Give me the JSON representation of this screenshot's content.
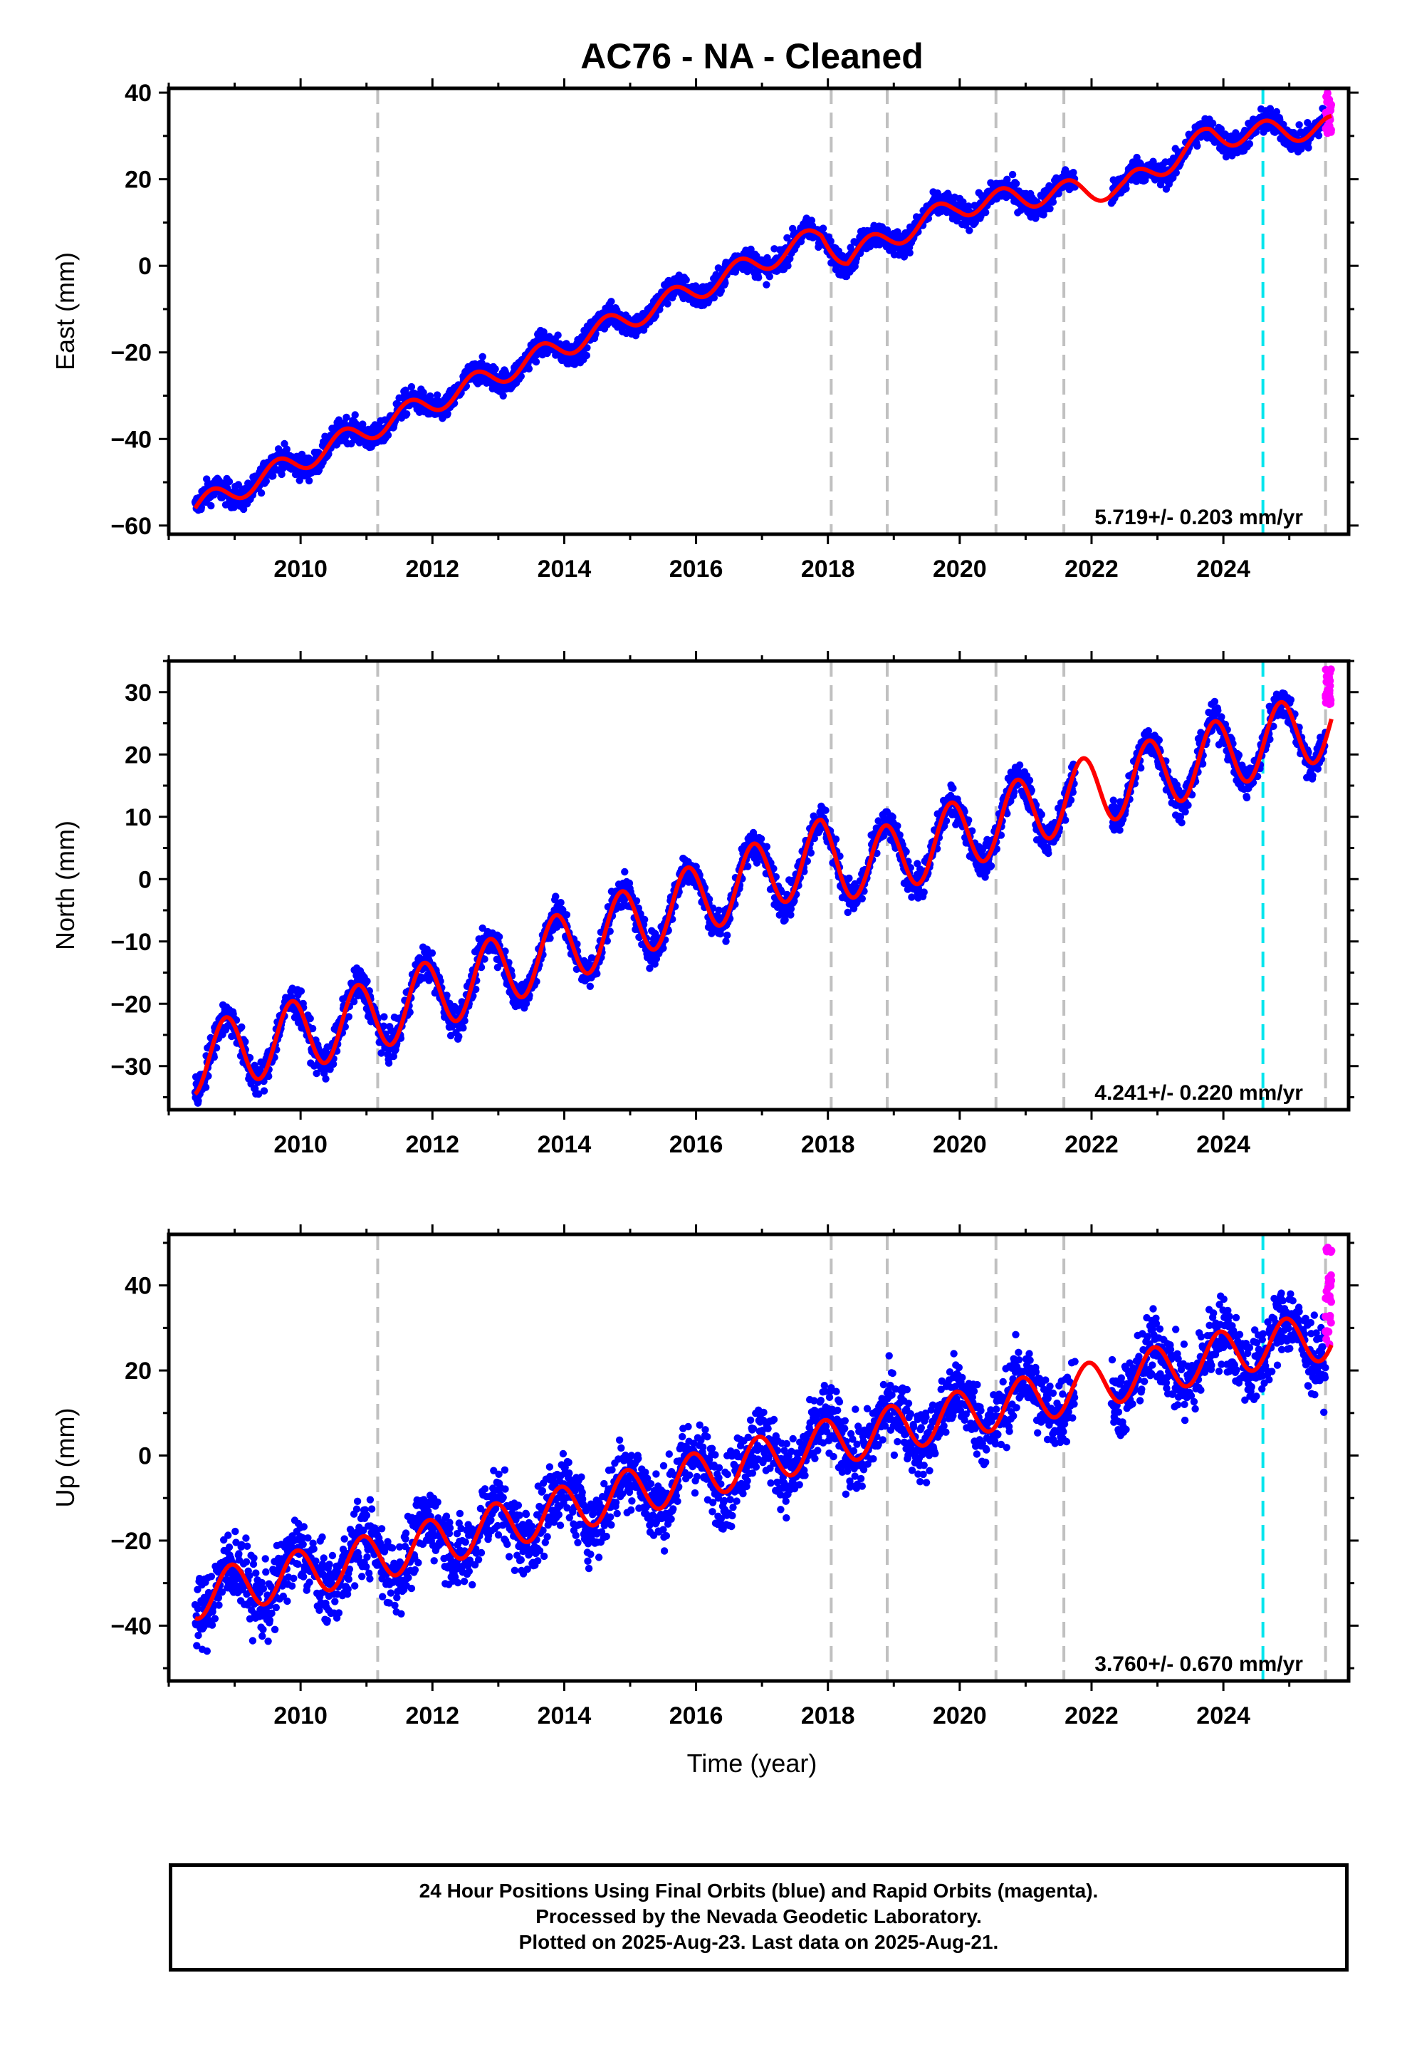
{
  "figure": {
    "title": "AC76  - NA - Cleaned",
    "xlabel": "Time (year)",
    "footer": [
      "24 Hour Positions Using Final Orbits (blue) and Rapid Orbits (magenta).",
      "Processed by the Nevada Geodetic Laboratory.",
      "Plotted on 2025-Aug-23. Last data on 2025-Aug-21."
    ],
    "colors": {
      "final_orbits": "#0000ff",
      "rapid_orbits": "#ff00ff",
      "model_fit": "#ff0000",
      "equipment_change": "#c0c0c0",
      "earthquake": "#00e5ee"
    }
  },
  "chart_data": [
    {
      "type": "scatter",
      "component": "East",
      "ylabel": "East (mm)",
      "xlim": [
        2008.0,
        2025.9
      ],
      "ylim": [
        -62,
        41
      ],
      "xticks": [
        "2010",
        "2012",
        "2014",
        "2016",
        "2018",
        "2020",
        "2022",
        "2024"
      ],
      "yticks": [
        "-60",
        "-40",
        "-20",
        "0",
        "20",
        "40"
      ],
      "rate_label": "5.719+/- 0.203 mm/yr",
      "rate_mm_per_yr": 5.719,
      "rate_sigma": 0.203,
      "offset_lines_gray": [
        2011.17,
        2018.05,
        2018.9,
        2020.55,
        2021.58,
        2025.55
      ],
      "offset_lines_cyan": [
        2024.6
      ],
      "final_orbits_start": 2008.4,
      "final_orbits_end": 2025.55,
      "data_gap": [
        2021.75,
        2022.3
      ],
      "rapid_orbits_start": 2025.55,
      "rapid_orbits_end": 2025.64,
      "model": {
        "anchors": [
          [
            2008.4,
            -56
          ],
          [
            2011.0,
            -38
          ],
          [
            2017.9,
            7
          ],
          [
            2018.3,
            2
          ],
          [
            2020.0,
            14
          ],
          [
            2021.5,
            17
          ],
          [
            2022.5,
            18
          ],
          [
            2023.8,
            30
          ],
          [
            2025.64,
            32
          ]
        ],
        "seasonal_amplitude": 2.6,
        "seasonal_phase": 0.4
      },
      "residual_scatter": 1.4,
      "rapid_values_approx": [
        30,
        40
      ]
    },
    {
      "type": "scatter",
      "component": "North",
      "ylabel": "North (mm)",
      "xlim": [
        2008.0,
        2025.9
      ],
      "ylim": [
        -37,
        35
      ],
      "xticks": [
        "2010",
        "2012",
        "2014",
        "2016",
        "2018",
        "2020",
        "2022",
        "2024"
      ],
      "yticks": [
        "-30",
        "-20",
        "-10",
        "0",
        "10",
        "20",
        "30"
      ],
      "rate_label": "4.241+/- 0.220 mm/yr",
      "rate_mm_per_yr": 4.241,
      "rate_sigma": 0.22,
      "offset_lines_gray": [
        2011.17,
        2018.05,
        2018.9,
        2020.55,
        2021.58,
        2025.55
      ],
      "offset_lines_cyan": [
        2024.6
      ],
      "final_orbits_start": 2008.4,
      "final_orbits_end": 2025.55,
      "data_gap": [
        2021.75,
        2022.3
      ],
      "rapid_orbits_start": 2025.55,
      "rapid_orbits_end": 2025.64,
      "model": {
        "anchors": [
          [
            2008.4,
            -29
          ],
          [
            2011.1,
            -22
          ],
          [
            2017.9,
            4
          ],
          [
            2018.6,
            2
          ],
          [
            2021.6,
            13
          ],
          [
            2023.0,
            17
          ],
          [
            2024.6,
            22
          ],
          [
            2025.64,
            25
          ]
        ],
        "seasonal_amplitude": 5.6,
        "seasonal_phase": 0.62
      },
      "residual_scatter": 1.3,
      "rapid_values_approx": [
        28,
        34
      ]
    },
    {
      "type": "scatter",
      "component": "Up",
      "ylabel": "Up (mm)",
      "xlim": [
        2008.0,
        2025.9
      ],
      "ylim": [
        -53,
        52
      ],
      "xticks": [
        "2010",
        "2012",
        "2014",
        "2016",
        "2018",
        "2020",
        "2022",
        "2024"
      ],
      "yticks": [
        "-40",
        "-20",
        "0",
        "20",
        "40"
      ],
      "rate_label": "3.760+/- 0.670 mm/yr",
      "rate_mm_per_yr": 3.76,
      "rate_sigma": 0.67,
      "offset_lines_gray": [
        2011.17,
        2018.05,
        2018.9,
        2020.55,
        2021.58,
        2025.55
      ],
      "offset_lines_cyan": [
        2024.6
      ],
      "final_orbits_start": 2008.4,
      "final_orbits_end": 2025.55,
      "data_gap": [
        2021.75,
        2022.3
      ],
      "rapid_orbits_start": 2025.55,
      "rapid_orbits_end": 2025.64,
      "model": {
        "anchors": [
          [
            2008.4,
            -33
          ],
          [
            2011.1,
            -24
          ],
          [
            2018.0,
            3
          ],
          [
            2021.6,
            15
          ],
          [
            2024.6,
            26
          ],
          [
            2025.64,
            28
          ]
        ],
        "seasonal_amplitude": 5.5,
        "seasonal_phase": 0.7
      },
      "residual_scatter": 4.2,
      "rapid_values_approx": [
        26,
        49
      ]
    }
  ]
}
